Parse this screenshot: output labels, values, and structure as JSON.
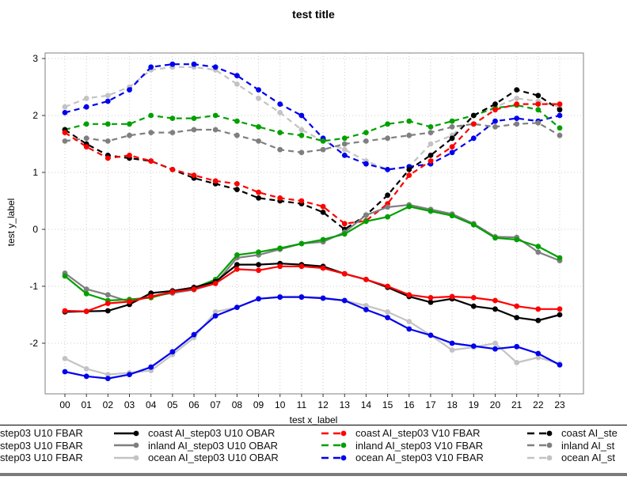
{
  "title": "test title",
  "axes": {
    "x_label": "test x_label",
    "y_label": "test y_label",
    "x_ticks": [
      "00",
      "01",
      "02",
      "03",
      "04",
      "05",
      "06",
      "07",
      "08",
      "09",
      "10",
      "11",
      "12",
      "13",
      "14",
      "15",
      "16",
      "17",
      "18",
      "19",
      "20",
      "21",
      "22",
      "23"
    ],
    "y_ticks": [
      "3",
      "2",
      "1",
      "0",
      "-1",
      "-2"
    ],
    "y_tick_values": [
      3,
      2,
      1,
      0,
      -1,
      -2
    ]
  },
  "colors": {
    "coast": "#000000",
    "inland": "#7f7f7f",
    "ocean": "#c3c3c3",
    "coast_fbar": "#ff0000",
    "inland_fbar": "#00a000",
    "ocean_fbar": "#0000ee",
    "grid": "#cccccc",
    "plot_border": "#808080",
    "legend_bottom_bar": "#7a7a7a"
  },
  "chart_data": {
    "type": "line",
    "x_categories": [
      "00",
      "01",
      "02",
      "03",
      "04",
      "05",
      "06",
      "07",
      "08",
      "09",
      "10",
      "11",
      "12",
      "13",
      "14",
      "15",
      "16",
      "17",
      "18",
      "19",
      "20",
      "21",
      "22",
      "23"
    ],
    "ylim": [
      -2.95,
      3.15
    ],
    "grid": true,
    "legend_position": "bottom",
    "series": [
      {
        "id": "ocean-v10-obar",
        "color": "#c3c3c3",
        "dashed": true,
        "values": [
          2.15,
          2.3,
          2.35,
          2.5,
          2.8,
          2.85,
          2.85,
          2.8,
          2.55,
          2.3,
          2.05,
          1.75,
          1.55,
          1.4,
          1.2,
          1.05,
          1.1,
          1.5,
          1.65,
          2.0,
          2.15,
          2.3,
          2.25,
          2.15
        ]
      },
      {
        "id": "ocean-v10-fbar",
        "color": "#0000ee",
        "dashed": true,
        "values": [
          2.05,
          2.15,
          2.25,
          2.45,
          2.85,
          2.9,
          2.9,
          2.85,
          2.7,
          2.45,
          2.2,
          2.0,
          1.6,
          1.3,
          1.15,
          1.05,
          1.1,
          1.15,
          1.35,
          1.6,
          1.9,
          1.95,
          1.9,
          2.0
        ]
      },
      {
        "id": "inland-v10-obar",
        "color": "#7f7f7f",
        "dashed": true,
        "values": [
          1.55,
          1.6,
          1.55,
          1.65,
          1.7,
          1.7,
          1.75,
          1.75,
          1.65,
          1.55,
          1.4,
          1.35,
          1.4,
          1.5,
          1.55,
          1.6,
          1.65,
          1.7,
          1.8,
          1.85,
          1.8,
          1.85,
          1.87,
          1.65
        ]
      },
      {
        "id": "inland-v10-fbar",
        "color": "#00a000",
        "dashed": true,
        "values": [
          1.75,
          1.85,
          1.85,
          1.85,
          2.0,
          1.95,
          1.95,
          2.0,
          1.9,
          1.8,
          1.7,
          1.65,
          1.55,
          1.6,
          1.7,
          1.85,
          1.9,
          1.8,
          1.9,
          2.0,
          2.13,
          2.18,
          2.1,
          1.78
        ]
      },
      {
        "id": "coast-v10-obar",
        "color": "#000000",
        "dashed": true,
        "values": [
          1.75,
          1.5,
          1.3,
          1.25,
          1.2,
          1.05,
          0.9,
          0.8,
          0.7,
          0.55,
          0.5,
          0.45,
          0.3,
          0.0,
          0.25,
          0.6,
          1.05,
          1.3,
          1.6,
          2.0,
          2.2,
          2.45,
          2.35,
          2.1
        ]
      },
      {
        "id": "coast-v10-fbar",
        "color": "#ff0000",
        "dashed": true,
        "values": [
          1.7,
          1.45,
          1.25,
          1.3,
          1.2,
          1.05,
          0.95,
          0.85,
          0.8,
          0.65,
          0.55,
          0.5,
          0.4,
          0.1,
          0.15,
          0.45,
          0.95,
          1.2,
          1.45,
          1.85,
          2.1,
          2.2,
          2.2,
          2.2
        ]
      },
      {
        "id": "ocean-u10-obar",
        "color": "#c3c3c3",
        "dashed": false,
        "values": [
          -2.27,
          -2.45,
          -2.55,
          -2.52,
          -2.48,
          -2.2,
          -1.9,
          -1.45,
          -1.37,
          -1.22,
          -1.18,
          -1.18,
          -1.2,
          -1.25,
          -1.34,
          -1.45,
          -1.62,
          -1.86,
          -2.12,
          -2.07,
          -2.0,
          -2.34,
          -2.25,
          -2.36
        ]
      },
      {
        "id": "ocean-u10-fbar",
        "color": "#0000ee",
        "dashed": false,
        "values": [
          -2.5,
          -2.58,
          -2.62,
          -2.55,
          -2.42,
          -2.15,
          -1.85,
          -1.52,
          -1.37,
          -1.22,
          -1.19,
          -1.19,
          -1.21,
          -1.25,
          -1.41,
          -1.55,
          -1.75,
          -1.86,
          -2.0,
          -2.05,
          -2.1,
          -2.06,
          -2.18,
          -2.38
        ]
      },
      {
        "id": "inland-u10-obar",
        "color": "#7f7f7f",
        "dashed": false,
        "values": [
          -0.77,
          -1.05,
          -1.15,
          -1.27,
          -1.18,
          -1.12,
          -1.06,
          -0.95,
          -0.5,
          -0.45,
          -0.35,
          -0.25,
          -0.22,
          -0.05,
          0.25,
          0.39,
          0.43,
          0.35,
          0.27,
          0.1,
          -0.13,
          -0.14,
          -0.4,
          -0.55
        ]
      },
      {
        "id": "inland-u10-fbar",
        "color": "#00a000",
        "dashed": false,
        "values": [
          -0.82,
          -1.13,
          -1.25,
          -1.23,
          -1.2,
          -1.1,
          -1.03,
          -0.88,
          -0.45,
          -0.4,
          -0.33,
          -0.25,
          -0.18,
          -0.08,
          0.14,
          0.22,
          0.4,
          0.32,
          0.24,
          0.08,
          -0.15,
          -0.18,
          -0.3,
          -0.5
        ]
      },
      {
        "id": "coast-u10-obar",
        "color": "#000000",
        "dashed": false,
        "values": [
          -1.45,
          -1.44,
          -1.43,
          -1.32,
          -1.12,
          -1.08,
          -1.02,
          -0.92,
          -0.62,
          -0.62,
          -0.6,
          -0.62,
          -0.65,
          -0.78,
          -0.88,
          -1.02,
          -1.18,
          -1.28,
          -1.22,
          -1.35,
          -1.4,
          -1.55,
          -1.6,
          -1.5
        ]
      },
      {
        "id": "coast-u10-fbar",
        "color": "#ff0000",
        "dashed": false,
        "values": [
          -1.43,
          -1.44,
          -1.3,
          -1.27,
          -1.18,
          -1.1,
          -1.05,
          -0.95,
          -0.7,
          -0.72,
          -0.65,
          -0.65,
          -0.68,
          -0.78,
          -0.88,
          -1.0,
          -1.15,
          -1.2,
          -1.18,
          -1.2,
          -1.25,
          -1.35,
          -1.4,
          -1.4
        ]
      }
    ]
  },
  "legend": {
    "columns": [
      {
        "entries": [
          {
            "label": "step03 U10 FBAR"
          },
          {
            "label": "step03 U10 FBAR"
          },
          {
            "label": "step03 U10 FBAR"
          }
        ]
      },
      {
        "entries": [
          {
            "color": "#000000",
            "dashed": false,
            "label": "coast AI_step03 U10 OBAR"
          },
          {
            "color": "#7f7f7f",
            "dashed": false,
            "label": "inland AI_step03 U10 OBAR"
          },
          {
            "color": "#c3c3c3",
            "dashed": false,
            "label": "ocean AI_step03 U10 OBAR"
          }
        ]
      },
      {
        "entries": [
          {
            "color": "#ff0000",
            "dashed": true,
            "label": "coast AI_step03 V10 FBAR"
          },
          {
            "color": "#00a000",
            "dashed": true,
            "label": "inland AI_step03 V10 FBAR"
          },
          {
            "color": "#0000ee",
            "dashed": true,
            "label": "ocean AI_step03 V10 FBAR"
          }
        ]
      },
      {
        "entries": [
          {
            "color": "#000000",
            "dashed": true,
            "label": "coast AI_ste"
          },
          {
            "color": "#7f7f7f",
            "dashed": true,
            "label": "inland AI_st"
          },
          {
            "color": "#c3c3c3",
            "dashed": true,
            "label": "ocean AI_st"
          }
        ]
      }
    ]
  }
}
